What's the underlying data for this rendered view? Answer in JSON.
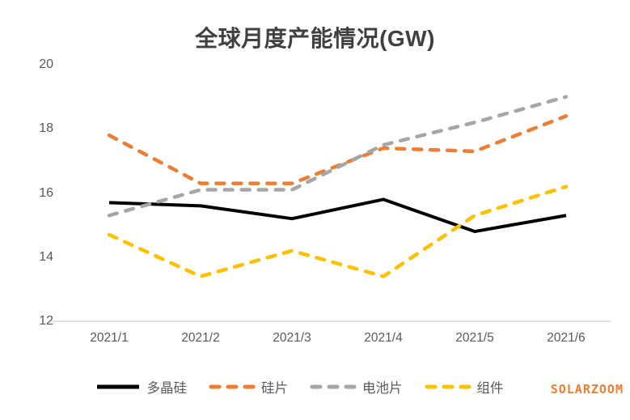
{
  "title": "全球月度产能情况(GW)",
  "watermark": "SOLARZOOM",
  "colors": {
    "title_text": "#404040",
    "axis_text": "#595959",
    "axis_line": "#D9D9D9",
    "watermark": "#ED7D31"
  },
  "chart_data": {
    "type": "line",
    "title": "全球月度产能情况(GW)",
    "xlabel": "",
    "ylabel": "",
    "categories": [
      "2021/1",
      "2021/2",
      "2021/3",
      "2021/4",
      "2021/5",
      "2021/6"
    ],
    "series": [
      {
        "key": "polysilicon",
        "name": "多晶硅",
        "color": "#000000",
        "line_style": "solid",
        "values": [
          15.7,
          15.6,
          15.2,
          15.8,
          14.8,
          15.3
        ]
      },
      {
        "key": "wafer",
        "name": "硅片",
        "color": "#ED7D31",
        "line_style": "dashed",
        "values": [
          17.8,
          16.3,
          16.3,
          17.4,
          17.3,
          18.4
        ]
      },
      {
        "key": "cell",
        "name": "电池片",
        "color": "#A6A6A6",
        "line_style": "dashed",
        "values": [
          15.3,
          16.1,
          16.1,
          17.5,
          18.2,
          19.0
        ]
      },
      {
        "key": "module",
        "name": "组件",
        "color": "#FFC000",
        "line_style": "dashed",
        "values": [
          14.7,
          13.4,
          14.2,
          13.4,
          15.3,
          16.2
        ]
      }
    ],
    "yticks": [
      12,
      14,
      16,
      18,
      20
    ],
    "ylim": [
      12,
      20
    ],
    "grid": false,
    "legend_position": "bottom"
  }
}
